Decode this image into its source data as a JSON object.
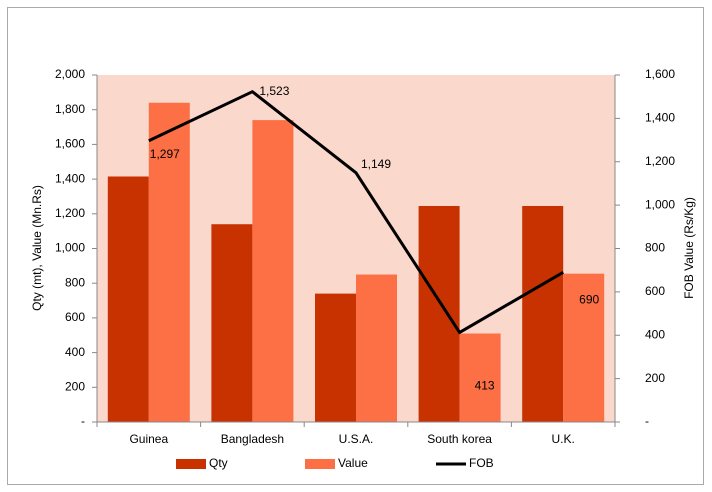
{
  "chart_data": {
    "type": "bar_line",
    "categories": [
      "Guinea",
      "Bangladesh",
      "U.S.A.",
      "South korea",
      "U.K."
    ],
    "series": [
      {
        "name": "Qty",
        "color": "#c83200",
        "type": "bar",
        "values": [
          1415,
          1140,
          740,
          1245,
          1245
        ]
      },
      {
        "name": "Value",
        "color": "#fd7045",
        "type": "bar",
        "values": [
          1840,
          1740,
          850,
          510,
          855
        ]
      },
      {
        "name": "FOB",
        "color": "#000000",
        "type": "line",
        "axis": "y2",
        "values": [
          1297,
          1523,
          1149,
          413,
          690
        ],
        "value_labels": [
          "1,297",
          "1,523",
          "1,149",
          "413",
          "690"
        ]
      }
    ],
    "ylabel": "Qty  (mt),  Value (Mn.Rs)",
    "y2label": "FOB Value (Rs/Kg)",
    "ylim": [
      0,
      2000
    ],
    "yticks": [
      {
        "value": 0,
        "label": "-"
      },
      200,
      400,
      600,
      800,
      {
        "value": 1000,
        "label": "1,000"
      },
      {
        "value": 1200,
        "label": "1,200"
      },
      {
        "value": 1400,
        "label": "1,400"
      },
      {
        "value": 1600,
        "label": "1,600"
      },
      {
        "value": 1800,
        "label": "1,800"
      },
      {
        "value": 2000,
        "label": "2,000"
      }
    ],
    "y2lim": [
      0,
      1600
    ],
    "y2ticks": [
      {
        "value": 0,
        "label": "-"
      },
      200,
      400,
      600,
      800,
      {
        "value": 1000,
        "label": "1,000"
      },
      {
        "value": 1200,
        "label": "1,200"
      },
      {
        "value": 1400,
        "label": "1,400"
      },
      {
        "value": 1600,
        "label": "1,600"
      }
    ],
    "plot_background": "#fad8cc",
    "legend": "bottom"
  }
}
